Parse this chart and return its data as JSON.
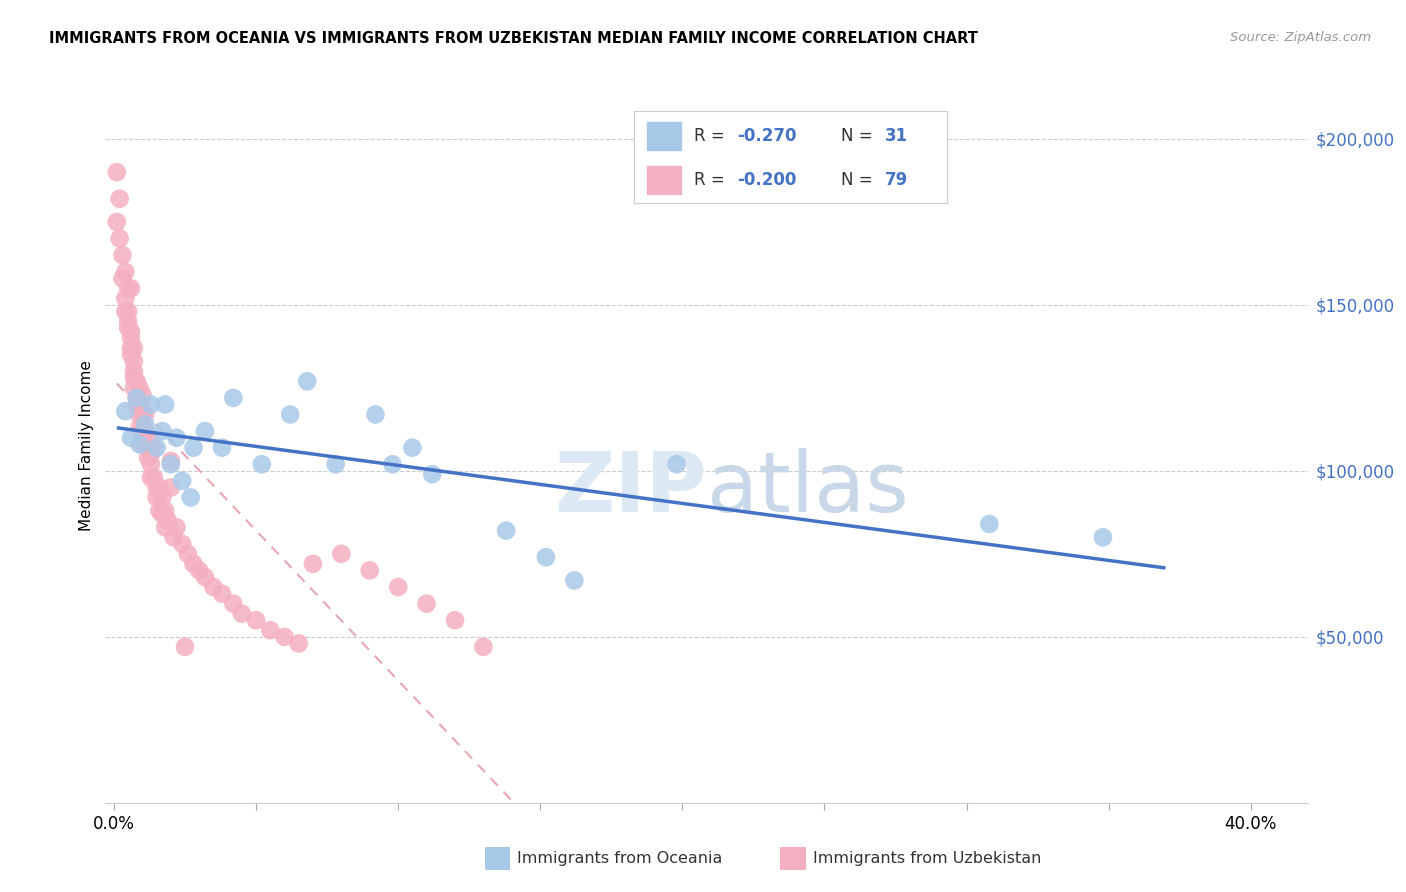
{
  "title": "IMMIGRANTS FROM OCEANIA VS IMMIGRANTS FROM UZBEKISTAN MEDIAN FAMILY INCOME CORRELATION CHART",
  "source": "Source: ZipAtlas.com",
  "ylabel": "Median Family Income",
  "xlim": [
    -0.003,
    0.42
  ],
  "ylim": [
    0,
    215000
  ],
  "legend1_r": "-0.270",
  "legend1_n": "31",
  "legend2_r": "-0.200",
  "legend2_n": "79",
  "color_oceania": "#a8c8e8",
  "color_uzbekistan": "#f4afc0",
  "trendline_oceania": "#4472c4",
  "trendline_uzbekistan": "#e08898",
  "background": "#ffffff",
  "watermark_zip": "ZIP",
  "watermark_atlas": "atlas",
  "oceania_x": [
    0.004,
    0.006,
    0.008,
    0.009,
    0.011,
    0.013,
    0.015,
    0.017,
    0.018,
    0.02,
    0.022,
    0.024,
    0.027,
    0.028,
    0.032,
    0.038,
    0.042,
    0.052,
    0.062,
    0.068,
    0.078,
    0.092,
    0.098,
    0.105,
    0.112,
    0.138,
    0.152,
    0.162,
    0.198,
    0.308,
    0.348
  ],
  "oceania_y": [
    118000,
    110000,
    122000,
    108000,
    114000,
    120000,
    107000,
    112000,
    120000,
    102000,
    110000,
    97000,
    92000,
    107000,
    112000,
    107000,
    122000,
    102000,
    117000,
    127000,
    102000,
    117000,
    102000,
    107000,
    99000,
    82000,
    74000,
    67000,
    102000,
    84000,
    80000
  ],
  "uzbekistan_x": [
    0.001,
    0.001,
    0.002,
    0.002,
    0.003,
    0.003,
    0.004,
    0.004,
    0.004,
    0.005,
    0.005,
    0.005,
    0.005,
    0.006,
    0.006,
    0.006,
    0.006,
    0.006,
    0.007,
    0.007,
    0.007,
    0.007,
    0.007,
    0.008,
    0.008,
    0.008,
    0.009,
    0.009,
    0.009,
    0.009,
    0.01,
    0.01,
    0.01,
    0.01,
    0.011,
    0.011,
    0.011,
    0.012,
    0.012,
    0.012,
    0.013,
    0.013,
    0.013,
    0.014,
    0.014,
    0.015,
    0.015,
    0.016,
    0.016,
    0.017,
    0.017,
    0.018,
    0.018,
    0.019,
    0.02,
    0.021,
    0.022,
    0.024,
    0.026,
    0.028,
    0.03,
    0.032,
    0.035,
    0.038,
    0.042,
    0.045,
    0.05,
    0.055,
    0.06,
    0.065,
    0.07,
    0.08,
    0.09,
    0.1,
    0.11,
    0.12,
    0.13,
    0.02,
    0.025
  ],
  "uzbekistan_y": [
    190000,
    175000,
    170000,
    182000,
    165000,
    158000,
    160000,
    152000,
    148000,
    148000,
    155000,
    145000,
    143000,
    142000,
    155000,
    140000,
    137000,
    135000,
    137000,
    133000,
    130000,
    128000,
    125000,
    127000,
    122000,
    120000,
    120000,
    125000,
    117000,
    113000,
    116000,
    112000,
    123000,
    108000,
    117000,
    112000,
    108000,
    110000,
    107000,
    104000,
    102000,
    105000,
    98000,
    98000,
    107000,
    95000,
    92000,
    95000,
    88000,
    87000,
    92000,
    83000,
    88000,
    85000,
    95000,
    80000,
    83000,
    78000,
    75000,
    72000,
    70000,
    68000,
    65000,
    63000,
    60000,
    57000,
    55000,
    52000,
    50000,
    48000,
    72000,
    75000,
    70000,
    65000,
    60000,
    55000,
    47000,
    103000,
    47000
  ]
}
